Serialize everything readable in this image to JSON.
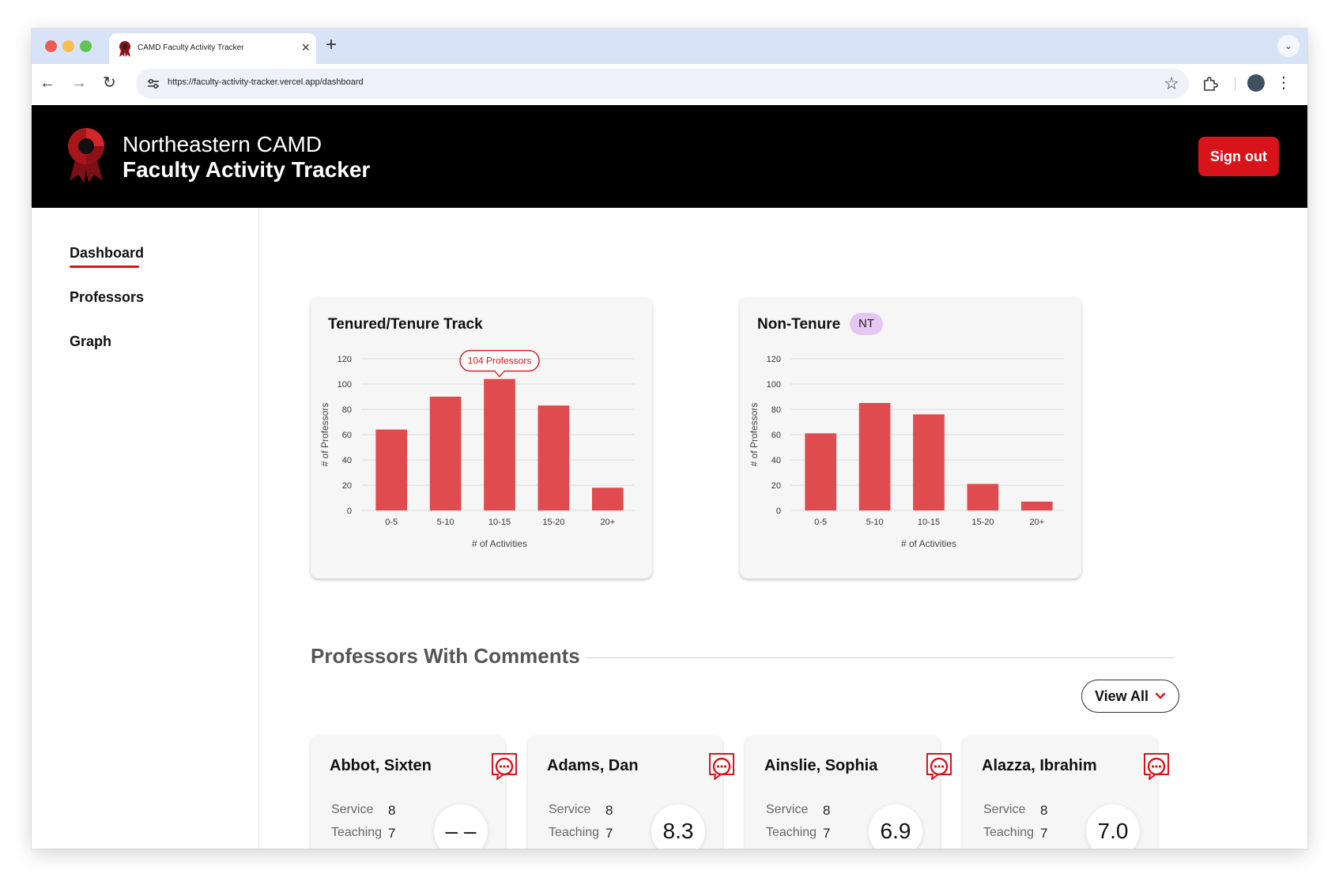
{
  "browser": {
    "tab_title": "CAMD Faculty Activity Tracker",
    "url": "https://faculty-activity-tracker.vercel.app/dashboard"
  },
  "header": {
    "line1": "Northeastern CAMD",
    "line2": "Faculty Activity Tracker",
    "signout_label": "Sign out"
  },
  "sidebar": {
    "items": [
      {
        "label": "Dashboard",
        "active": true
      },
      {
        "label": "Professors",
        "active": false
      },
      {
        "label": "Graph",
        "active": false
      }
    ]
  },
  "charts": {
    "tenured": {
      "title": "Tenured/Tenure Track"
    },
    "nontenure": {
      "title": "Non-Tenure",
      "badge": "NT"
    }
  },
  "chart_data": [
    {
      "type": "bar",
      "title": "Tenured/Tenure Track",
      "categories": [
        "0-5",
        "5-10",
        "10-15",
        "15-20",
        "20+"
      ],
      "values": [
        64,
        90,
        104,
        83,
        18
      ],
      "xlabel": "# of Activities",
      "ylabel": "# of Professors",
      "ylim": [
        0,
        120
      ],
      "yticks": [
        0,
        20,
        40,
        60,
        80,
        100,
        120
      ],
      "grid": true,
      "tooltip": {
        "category": "10-15",
        "text": "104 Professors"
      },
      "bar_color": "#df4b4e"
    },
    {
      "type": "bar",
      "title": "Non-Tenure",
      "categories": [
        "0-5",
        "5-10",
        "10-15",
        "15-20",
        "20+"
      ],
      "values": [
        61,
        85,
        76,
        21,
        7
      ],
      "xlabel": "# of Activities",
      "ylabel": "# of Professors",
      "ylim": [
        0,
        120
      ],
      "yticks": [
        0,
        20,
        40,
        60,
        80,
        100,
        120
      ],
      "grid": true,
      "bar_color": "#df4b4e"
    }
  ],
  "comments": {
    "title": "Professors With Comments",
    "view_all_label": "View All",
    "professors": [
      {
        "name": "Abbot, Sixten",
        "service_label": "Service",
        "service": "8",
        "teaching_label": "Teaching",
        "teaching": "7",
        "score": "– –"
      },
      {
        "name": "Adams, Dan",
        "service_label": "Service",
        "service": "8",
        "teaching_label": "Teaching",
        "teaching": "7",
        "score": "8.3"
      },
      {
        "name": "Ainslie, Sophia",
        "service_label": "Service",
        "service": "8",
        "teaching_label": "Teaching",
        "teaching": "7",
        "score": "6.9"
      },
      {
        "name": "Alazza, Ibrahim",
        "service_label": "Service",
        "service": "8",
        "teaching_label": "Teaching",
        "teaching": "7",
        "score": "7.0"
      }
    ]
  },
  "colors": {
    "brand_red": "#d8141b",
    "bar_red": "#df4b4e",
    "header_bg": "#000000",
    "nt_badge": "#e6c6f2"
  }
}
